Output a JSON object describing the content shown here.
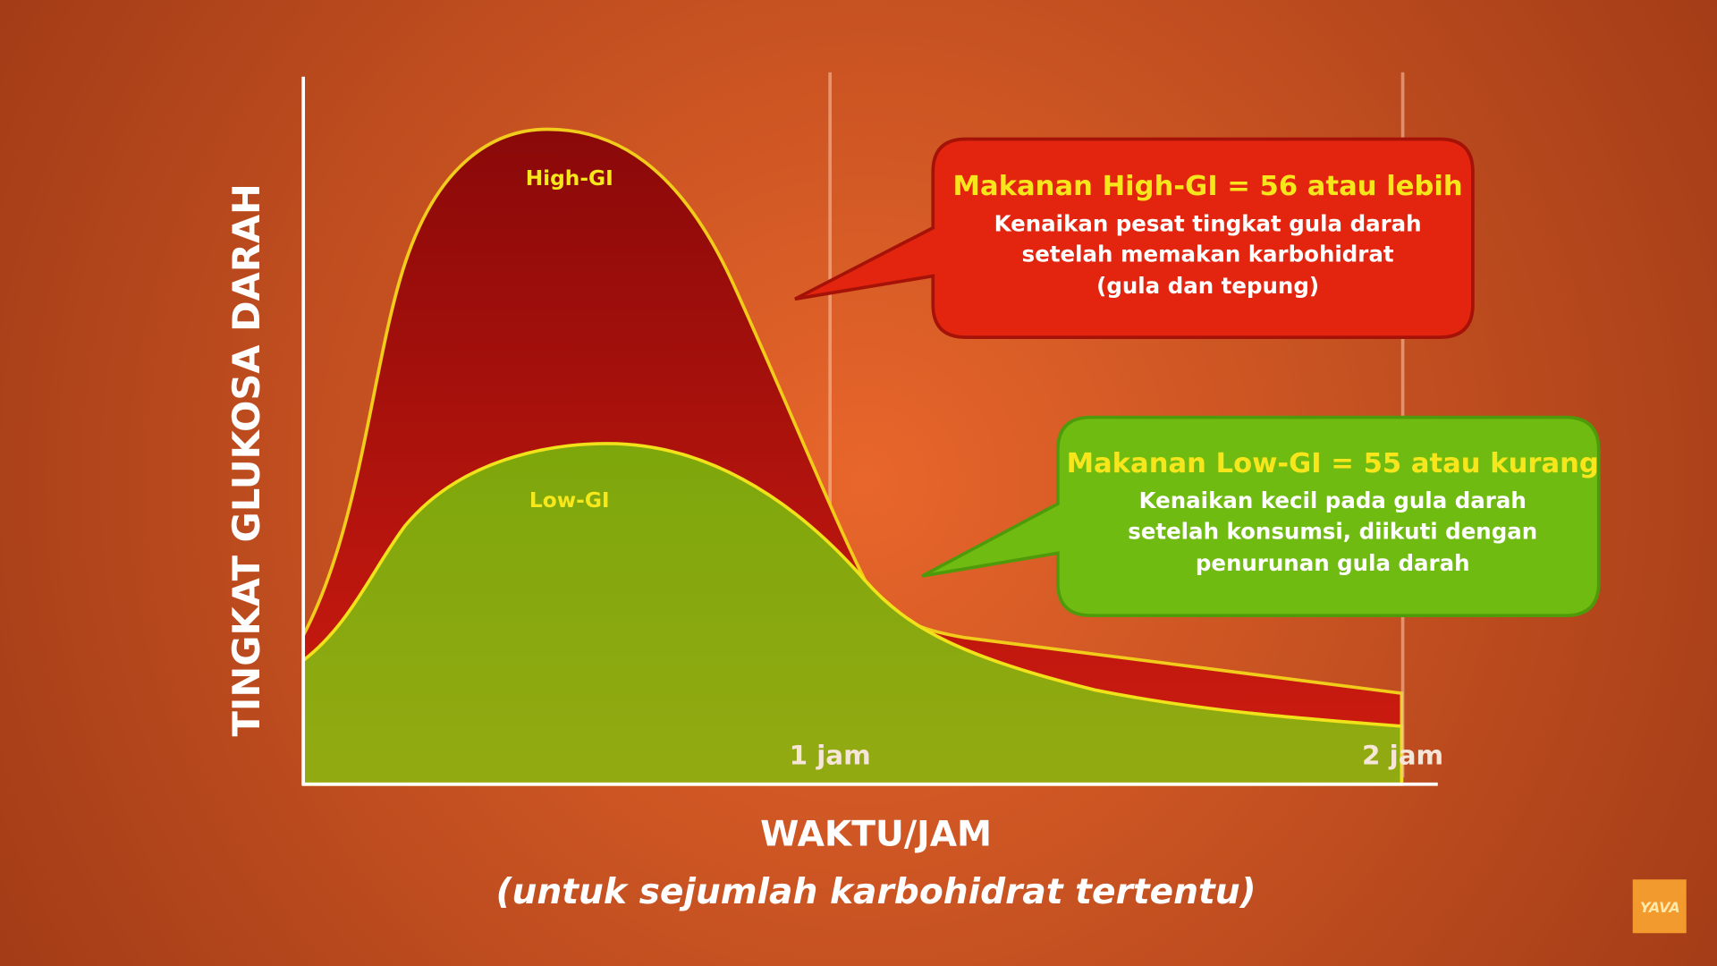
{
  "axes": {
    "y_title": "TINGKAT GLUKOSA DARAH",
    "x_title": "WAKTU/JAM",
    "x_subtitle": "(untuk sejumlah karbohidrat tertentu)",
    "x_marks": [
      "1 jam",
      "2 jam"
    ]
  },
  "curves": [
    {
      "label": "High-GI"
    },
    {
      "label": "Low-GI"
    }
  ],
  "callouts": [
    {
      "title": "Makanan High-GI = 56 atau lebih",
      "lines": [
        "Kenaikan pesat tingkat gula darah",
        "setelah memakan karbohidrat",
        "(gula dan tepung)"
      ]
    },
    {
      "title": "Makanan Low-GI = 55 atau kurang",
      "lines": [
        "Kenaikan kecil pada gula darah",
        "setelah konsumsi, diikuti dengan",
        "penurunan gula darah"
      ]
    }
  ],
  "logo": "YAVA"
}
